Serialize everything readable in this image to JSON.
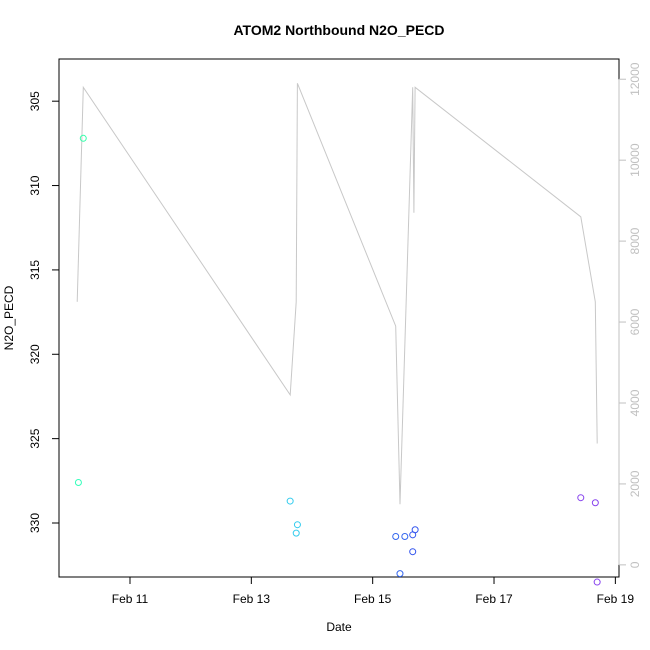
{
  "chart_data": {
    "type": "scatter",
    "title": "ATOM2 Northbound N2O_PECD",
    "xlabel": "Date",
    "ylabel": "N2O_PECD",
    "ylim": [
      302.5,
      333.2
    ],
    "y_reversed": true,
    "y_ticks": [
      305,
      310,
      315,
      320,
      325,
      330
    ],
    "x_ticks": [
      {
        "x": 11,
        "label": "Feb 11"
      },
      {
        "x": 13,
        "label": "Feb 13"
      },
      {
        "x": 15,
        "label": "Feb 15"
      },
      {
        "x": 17,
        "label": "Feb 17"
      },
      {
        "x": 19,
        "label": "Feb 19"
      }
    ],
    "xlim": [
      9.83,
      19.06
    ],
    "y2lim": [
      -300,
      12500
    ],
    "y2_ticks": [
      0,
      2000,
      4000,
      6000,
      8000,
      10000,
      12000
    ],
    "points": [
      {
        "x": 10.15,
        "y": 327.6,
        "color": "#33ffbb"
      },
      {
        "x": 10.23,
        "y": 307.2,
        "color": "#33ffaa"
      },
      {
        "x": 13.64,
        "y": 328.7,
        "color": "#33ccee"
      },
      {
        "x": 13.74,
        "y": 330.6,
        "color": "#33ccee"
      },
      {
        "x": 13.76,
        "y": 330.1,
        "color": "#33ccee"
      },
      {
        "x": 15.38,
        "y": 330.8,
        "color": "#3366ee"
      },
      {
        "x": 15.45,
        "y": 333.0,
        "color": "#3366ee"
      },
      {
        "x": 15.53,
        "y": 330.8,
        "color": "#3366ee"
      },
      {
        "x": 15.66,
        "y": 330.7,
        "color": "#3355ee"
      },
      {
        "x": 15.66,
        "y": 331.7,
        "color": "#3355ee"
      },
      {
        "x": 15.7,
        "y": 330.4,
        "color": "#3355ee"
      },
      {
        "x": 18.43,
        "y": 328.5,
        "color": "#8844ee"
      },
      {
        "x": 18.67,
        "y": 328.8,
        "color": "#8844ee"
      },
      {
        "x": 18.7,
        "y": 333.5,
        "color": "#8844ee"
      }
    ],
    "line_series": {
      "axis": "right",
      "color": "#c8c8c8",
      "x": [
        10.13,
        10.23,
        13.64,
        13.74,
        13.76,
        15.38,
        15.45,
        15.66,
        15.68,
        15.7,
        18.43,
        18.67,
        18.7
      ],
      "y": [
        6500,
        11800,
        4200,
        6500,
        11900,
        5900,
        1500,
        11800,
        8700,
        11800,
        8600,
        6500,
        3000
      ]
    }
  }
}
